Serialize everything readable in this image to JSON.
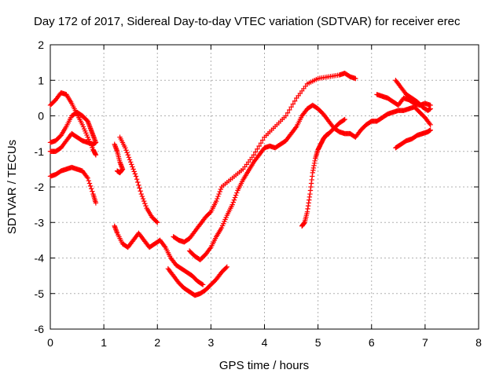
{
  "chart_data": {
    "type": "scatter",
    "title": "Day 172 of 2017, Sidereal Day-to-day VTEC variation (SDTVAR) for receiver erec",
    "xlabel": "GPS time / hours",
    "ylabel": "SDTVAR / TECUs",
    "xlim": [
      0,
      8
    ],
    "ylim": [
      -6,
      2
    ],
    "xticks": [
      "0",
      "1",
      "2",
      "3",
      "4",
      "5",
      "6",
      "7",
      "8"
    ],
    "yticks": [
      "-6",
      "-5",
      "-4",
      "-3",
      "-2",
      "-1",
      "0",
      "1",
      "2"
    ],
    "grid": true,
    "marker": "plus",
    "color": "#ff0000",
    "series": [
      {
        "points": [
          [
            0.0,
            0.3
          ],
          [
            0.1,
            0.45
          ],
          [
            0.2,
            0.65
          ],
          [
            0.3,
            0.6
          ],
          [
            0.4,
            0.35
          ],
          [
            0.5,
            0.05
          ],
          [
            0.6,
            -0.25
          ],
          [
            0.7,
            -0.6
          ],
          [
            0.8,
            -0.95
          ],
          [
            0.85,
            -1.1
          ]
        ]
      },
      {
        "points": [
          [
            0.0,
            -0.75
          ],
          [
            0.1,
            -0.7
          ],
          [
            0.2,
            -0.55
          ],
          [
            0.3,
            -0.3
          ],
          [
            0.4,
            0.0
          ],
          [
            0.5,
            0.1
          ],
          [
            0.6,
            0.0
          ],
          [
            0.7,
            -0.15
          ],
          [
            0.75,
            -0.35
          ],
          [
            0.8,
            -0.55
          ],
          [
            0.85,
            -0.75
          ]
        ]
      },
      {
        "points": [
          [
            0.0,
            -1.0
          ],
          [
            0.1,
            -1.0
          ],
          [
            0.2,
            -0.9
          ],
          [
            0.3,
            -0.7
          ],
          [
            0.4,
            -0.5
          ],
          [
            0.5,
            -0.6
          ],
          [
            0.6,
            -0.7
          ],
          [
            0.7,
            -0.75
          ],
          [
            0.8,
            -0.8
          ],
          [
            0.85,
            -0.75
          ]
        ]
      },
      {
        "points": [
          [
            0.0,
            -1.7
          ],
          [
            0.1,
            -1.65
          ],
          [
            0.2,
            -1.55
          ],
          [
            0.3,
            -1.5
          ],
          [
            0.4,
            -1.45
          ],
          [
            0.5,
            -1.5
          ],
          [
            0.6,
            -1.55
          ],
          [
            0.7,
            -1.75
          ],
          [
            0.8,
            -2.2
          ],
          [
            0.85,
            -2.45
          ]
        ]
      },
      {
        "points": [
          [
            1.2,
            -0.8
          ],
          [
            1.25,
            -1.0
          ],
          [
            1.3,
            -1.3
          ],
          [
            1.35,
            -1.5
          ],
          [
            1.3,
            -1.6
          ],
          [
            1.25,
            -1.55
          ]
        ]
      },
      {
        "points": [
          [
            1.3,
            -0.6
          ],
          [
            1.4,
            -0.9
          ],
          [
            1.5,
            -1.3
          ],
          [
            1.6,
            -1.7
          ],
          [
            1.7,
            -2.2
          ],
          [
            1.8,
            -2.6
          ],
          [
            1.9,
            -2.85
          ],
          [
            2.0,
            -3.0
          ]
        ]
      },
      {
        "points": [
          [
            1.2,
            -3.1
          ],
          [
            1.25,
            -3.3
          ],
          [
            1.35,
            -3.6
          ],
          [
            1.45,
            -3.7
          ],
          [
            1.55,
            -3.5
          ],
          [
            1.65,
            -3.3
          ],
          [
            1.75,
            -3.5
          ],
          [
            1.85,
            -3.7
          ],
          [
            1.95,
            -3.6
          ],
          [
            2.05,
            -3.5
          ],
          [
            2.15,
            -3.7
          ],
          [
            2.25,
            -4.0
          ],
          [
            2.35,
            -4.2
          ],
          [
            2.45,
            -4.3
          ],
          [
            2.55,
            -4.4
          ],
          [
            2.65,
            -4.5
          ],
          [
            2.75,
            -4.65
          ],
          [
            2.85,
            -4.75
          ]
        ]
      },
      {
        "points": [
          [
            2.3,
            -3.4
          ],
          [
            2.4,
            -3.5
          ],
          [
            2.5,
            -3.55
          ],
          [
            2.6,
            -3.45
          ],
          [
            2.7,
            -3.25
          ],
          [
            2.8,
            -3.05
          ],
          [
            2.9,
            -2.85
          ],
          [
            3.0,
            -2.7
          ],
          [
            3.1,
            -2.4
          ],
          [
            3.2,
            -2.0
          ],
          [
            3.4,
            -1.75
          ],
          [
            3.6,
            -1.5
          ],
          [
            3.8,
            -1.1
          ],
          [
            4.0,
            -0.6
          ],
          [
            4.2,
            -0.3
          ],
          [
            4.4,
            0.0
          ],
          [
            4.6,
            0.5
          ],
          [
            4.8,
            0.9
          ],
          [
            5.0,
            1.05
          ],
          [
            5.2,
            1.1
          ],
          [
            5.4,
            1.15
          ],
          [
            5.5,
            1.2
          ],
          [
            5.6,
            1.1
          ],
          [
            5.7,
            1.05
          ]
        ]
      },
      {
        "points": [
          [
            2.2,
            -4.3
          ],
          [
            2.3,
            -4.5
          ],
          [
            2.4,
            -4.7
          ],
          [
            2.5,
            -4.85
          ],
          [
            2.6,
            -4.95
          ],
          [
            2.7,
            -5.05
          ],
          [
            2.8,
            -5.0
          ],
          [
            2.9,
            -4.9
          ],
          [
            3.0,
            -4.75
          ],
          [
            3.1,
            -4.6
          ],
          [
            3.2,
            -4.4
          ],
          [
            3.3,
            -4.25
          ]
        ]
      },
      {
        "points": [
          [
            2.6,
            -3.8
          ],
          [
            2.7,
            -3.95
          ],
          [
            2.8,
            -4.05
          ],
          [
            2.9,
            -3.9
          ],
          [
            3.0,
            -3.7
          ],
          [
            3.1,
            -3.4
          ],
          [
            3.2,
            -3.15
          ],
          [
            3.3,
            -2.8
          ],
          [
            3.4,
            -2.5
          ],
          [
            3.5,
            -2.1
          ],
          [
            3.6,
            -1.8
          ],
          [
            3.7,
            -1.55
          ],
          [
            3.8,
            -1.3
          ],
          [
            3.9,
            -1.1
          ],
          [
            4.0,
            -0.9
          ],
          [
            4.1,
            -0.85
          ],
          [
            4.2,
            -0.9
          ],
          [
            4.3,
            -0.8
          ],
          [
            4.4,
            -0.7
          ],
          [
            4.5,
            -0.5
          ],
          [
            4.6,
            -0.3
          ],
          [
            4.7,
            0.0
          ],
          [
            4.8,
            0.2
          ],
          [
            4.9,
            0.3
          ],
          [
            5.0,
            0.2
          ],
          [
            5.1,
            0.05
          ],
          [
            5.2,
            -0.15
          ],
          [
            5.3,
            -0.35
          ],
          [
            5.4,
            -0.2
          ],
          [
            5.5,
            -0.1
          ]
        ]
      },
      {
        "points": [
          [
            4.7,
            -3.1
          ],
          [
            4.75,
            -3.0
          ],
          [
            4.8,
            -2.7
          ],
          [
            4.85,
            -2.2
          ],
          [
            4.9,
            -1.6
          ],
          [
            4.95,
            -1.2
          ],
          [
            5.0,
            -0.95
          ],
          [
            5.05,
            -0.8
          ],
          [
            5.1,
            -0.65
          ],
          [
            5.15,
            -0.55
          ],
          [
            5.2,
            -0.5
          ],
          [
            5.3,
            -0.35
          ],
          [
            5.4,
            -0.45
          ],
          [
            5.5,
            -0.5
          ],
          [
            5.6,
            -0.5
          ],
          [
            5.7,
            -0.6
          ],
          [
            5.8,
            -0.4
          ],
          [
            5.9,
            -0.25
          ],
          [
            6.0,
            -0.15
          ],
          [
            6.1,
            -0.15
          ],
          [
            6.2,
            -0.05
          ],
          [
            6.3,
            0.05
          ],
          [
            6.4,
            0.1
          ],
          [
            6.5,
            0.15
          ],
          [
            6.6,
            0.15
          ],
          [
            6.7,
            0.2
          ],
          [
            6.8,
            0.25
          ],
          [
            6.9,
            0.1
          ],
          [
            7.0,
            -0.05
          ],
          [
            7.1,
            -0.25
          ]
        ]
      },
      {
        "points": [
          [
            6.1,
            0.6
          ],
          [
            6.2,
            0.55
          ],
          [
            6.3,
            0.5
          ],
          [
            6.4,
            0.4
          ],
          [
            6.5,
            0.3
          ],
          [
            6.6,
            0.5
          ],
          [
            6.7,
            0.45
          ],
          [
            6.8,
            0.35
          ],
          [
            6.9,
            0.3
          ],
          [
            7.0,
            0.35
          ],
          [
            7.1,
            0.3
          ]
        ]
      },
      {
        "points": [
          [
            6.45,
            1.0
          ],
          [
            6.55,
            0.8
          ],
          [
            6.65,
            0.6
          ],
          [
            6.75,
            0.5
          ],
          [
            6.85,
            0.4
          ],
          [
            6.95,
            0.25
          ],
          [
            7.05,
            0.15
          ],
          [
            7.1,
            0.2
          ]
        ]
      },
      {
        "points": [
          [
            6.45,
            -0.9
          ],
          [
            6.55,
            -0.8
          ],
          [
            6.65,
            -0.7
          ],
          [
            6.75,
            -0.65
          ],
          [
            6.85,
            -0.55
          ],
          [
            6.95,
            -0.5
          ],
          [
            7.05,
            -0.45
          ],
          [
            7.1,
            -0.4
          ]
        ]
      }
    ]
  }
}
